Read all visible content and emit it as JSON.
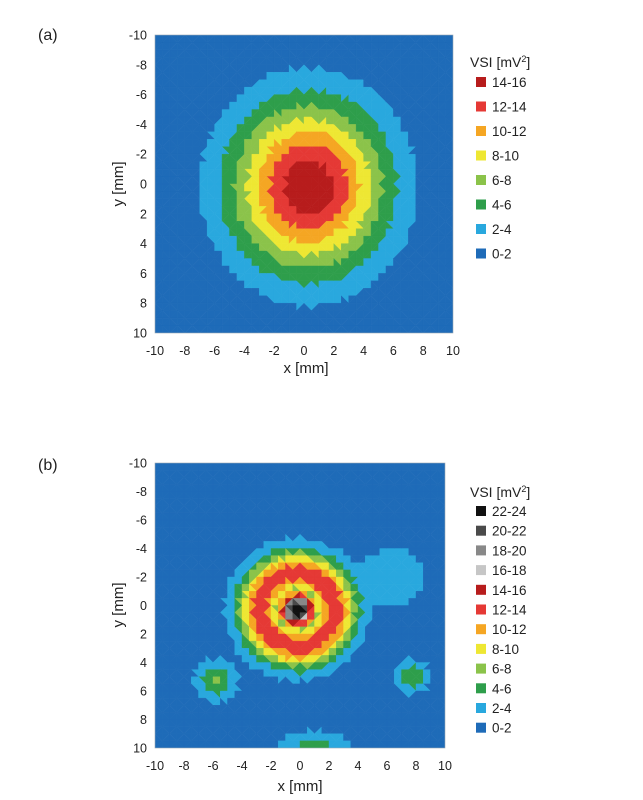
{
  "chart_data": [
    {
      "type": "heatmap",
      "panel_label": "(a)",
      "xlabel": "x [mm]",
      "ylabel": "y [mm]",
      "xlim": [
        -10,
        10
      ],
      "ylim": [
        -10,
        10
      ],
      "y_inverted": true,
      "x_ticks": [
        "-10",
        "-8",
        "-6",
        "-4",
        "-2",
        "0",
        "2",
        "4",
        "6",
        "8",
        "10"
      ],
      "y_ticks": [
        "-10",
        "-8",
        "-6",
        "-4",
        "-2",
        "0",
        "2",
        "4",
        "6",
        "8",
        "10"
      ],
      "legend_title": "VSI [mV",
      "legend_title_sup": "2",
      "legend_title_end": "]",
      "legend_placement": "right",
      "legend": [
        {
          "label": "14-16",
          "color": "#b71c1c"
        },
        {
          "label": "12-14",
          "color": "#e53935"
        },
        {
          "label": "10-12",
          "color": "#f5a623"
        },
        {
          "label": "8-10",
          "color": "#eee733"
        },
        {
          "label": "6-8",
          "color": "#8bc34a"
        },
        {
          "label": "4-6",
          "color": "#2e9e4b"
        },
        {
          "label": "2-4",
          "color": "#29a8de"
        },
        {
          "label": "0-2",
          "color": "#1e6bb8"
        }
      ],
      "peak": {
        "x": 0.3,
        "y": 0.2,
        "value": 15.5
      }
    },
    {
      "type": "heatmap",
      "panel_label": "(b)",
      "xlabel": "x [mm]",
      "ylabel": "y [mm]",
      "xlim": [
        -10,
        10
      ],
      "ylim": [
        -10,
        10
      ],
      "y_inverted": true,
      "x_ticks": [
        "-10",
        "-8",
        "-6",
        "-4",
        "-2",
        "0",
        "2",
        "4",
        "6",
        "8",
        "10"
      ],
      "y_ticks": [
        "-10",
        "-8",
        "-6",
        "-4",
        "-2",
        "0",
        "2",
        "4",
        "6",
        "8",
        "10"
      ],
      "legend_title": "VSI [mV",
      "legend_title_sup": "2",
      "legend_title_end": "]",
      "legend_placement": "right",
      "legend": [
        {
          "label": "22-24",
          "color": "#111111"
        },
        {
          "label": "20-22",
          "color": "#4a4a4a"
        },
        {
          "label": "18-20",
          "color": "#888888"
        },
        {
          "label": "16-18",
          "color": "#c6c6c6"
        },
        {
          "label": "14-16",
          "color": "#b71c1c"
        },
        {
          "label": "12-14",
          "color": "#e53935"
        },
        {
          "label": "10-12",
          "color": "#f5a623"
        },
        {
          "label": "8-10",
          "color": "#eee733"
        },
        {
          "label": "6-8",
          "color": "#8bc34a"
        },
        {
          "label": "4-6",
          "color": "#2e9e4b"
        },
        {
          "label": "2-4",
          "color": "#29a8de"
        },
        {
          "label": "0-2",
          "color": "#1e6bb8"
        }
      ],
      "peak": {
        "x": -0.2,
        "y": 0.2,
        "value": 23.5
      }
    }
  ]
}
